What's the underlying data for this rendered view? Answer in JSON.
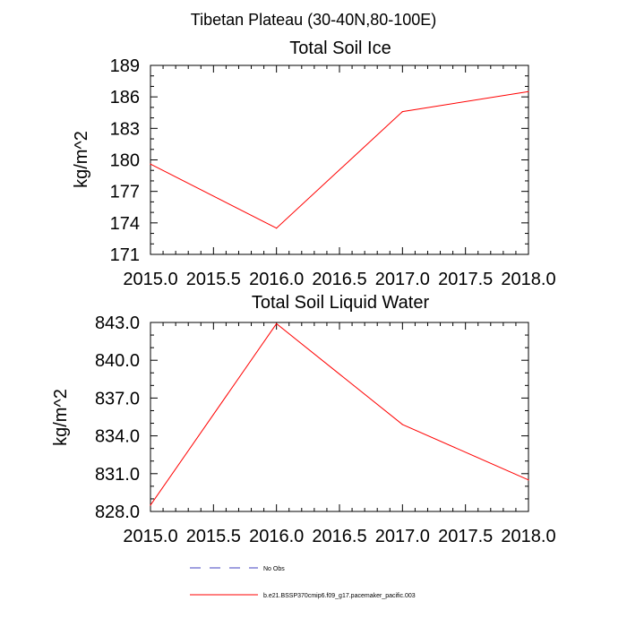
{
  "main_title": "Tibetan Plateau (30-40N,80-100E)",
  "chart_data": [
    {
      "type": "line",
      "title": "Total Soil Ice",
      "xlabel": "",
      "ylabel": "kg/m^2",
      "x": [
        2015.0,
        2016.0,
        2017.0,
        2018.0
      ],
      "series": [
        {
          "name": "b.e21.BSSP370cmip6.f09_g17.pacemaker_pacific.003",
          "color": "#ff0000",
          "values": [
            179.6,
            173.5,
            184.6,
            186.5
          ]
        }
      ],
      "xlim": [
        2015.0,
        2018.0
      ],
      "ylim": [
        171,
        189
      ],
      "xticks": [
        2015.0,
        2015.5,
        2016.0,
        2016.5,
        2017.0,
        2017.5,
        2018.0
      ],
      "xtick_labels": [
        "2015.0",
        "2015.5",
        "2016.0",
        "2016.5",
        "2017.0",
        "2017.5",
        "2018.0"
      ],
      "yticks": [
        171,
        174,
        177,
        180,
        183,
        186,
        189
      ],
      "ytick_labels": [
        "171",
        "174",
        "177",
        "180",
        "183",
        "186",
        "189"
      ]
    },
    {
      "type": "line",
      "title": "Total Soil Liquid Water",
      "xlabel": "",
      "ylabel": "kg/m^2",
      "x": [
        2015.0,
        2016.0,
        2017.0,
        2018.0
      ],
      "series": [
        {
          "name": "b.e21.BSSP370cmip6.f09_g17.pacemaker_pacific.003",
          "color": "#ff0000",
          "values": [
            828.5,
            842.9,
            834.9,
            830.5
          ]
        }
      ],
      "xlim": [
        2015.0,
        2018.0
      ],
      "ylim": [
        828.0,
        843.0
      ],
      "xticks": [
        2015.0,
        2015.5,
        2016.0,
        2016.5,
        2017.0,
        2017.5,
        2018.0
      ],
      "xtick_labels": [
        "2015.0",
        "2015.5",
        "2016.0",
        "2016.5",
        "2017.0",
        "2017.5",
        "2018.0"
      ],
      "yticks": [
        828.0,
        831.0,
        834.0,
        837.0,
        840.0,
        843.0
      ],
      "ytick_labels": [
        "828.0",
        "831.0",
        "834.0",
        "837.0",
        "840.0",
        "843.0"
      ]
    }
  ],
  "legend": [
    {
      "label": "No Obs",
      "color": "#4040c0",
      "style": "dashed"
    },
    {
      "label": "b.e21.BSSP370cmip6.f09_g17.pacemaker_pacific.003",
      "color": "#ff0000",
      "style": "solid"
    }
  ]
}
